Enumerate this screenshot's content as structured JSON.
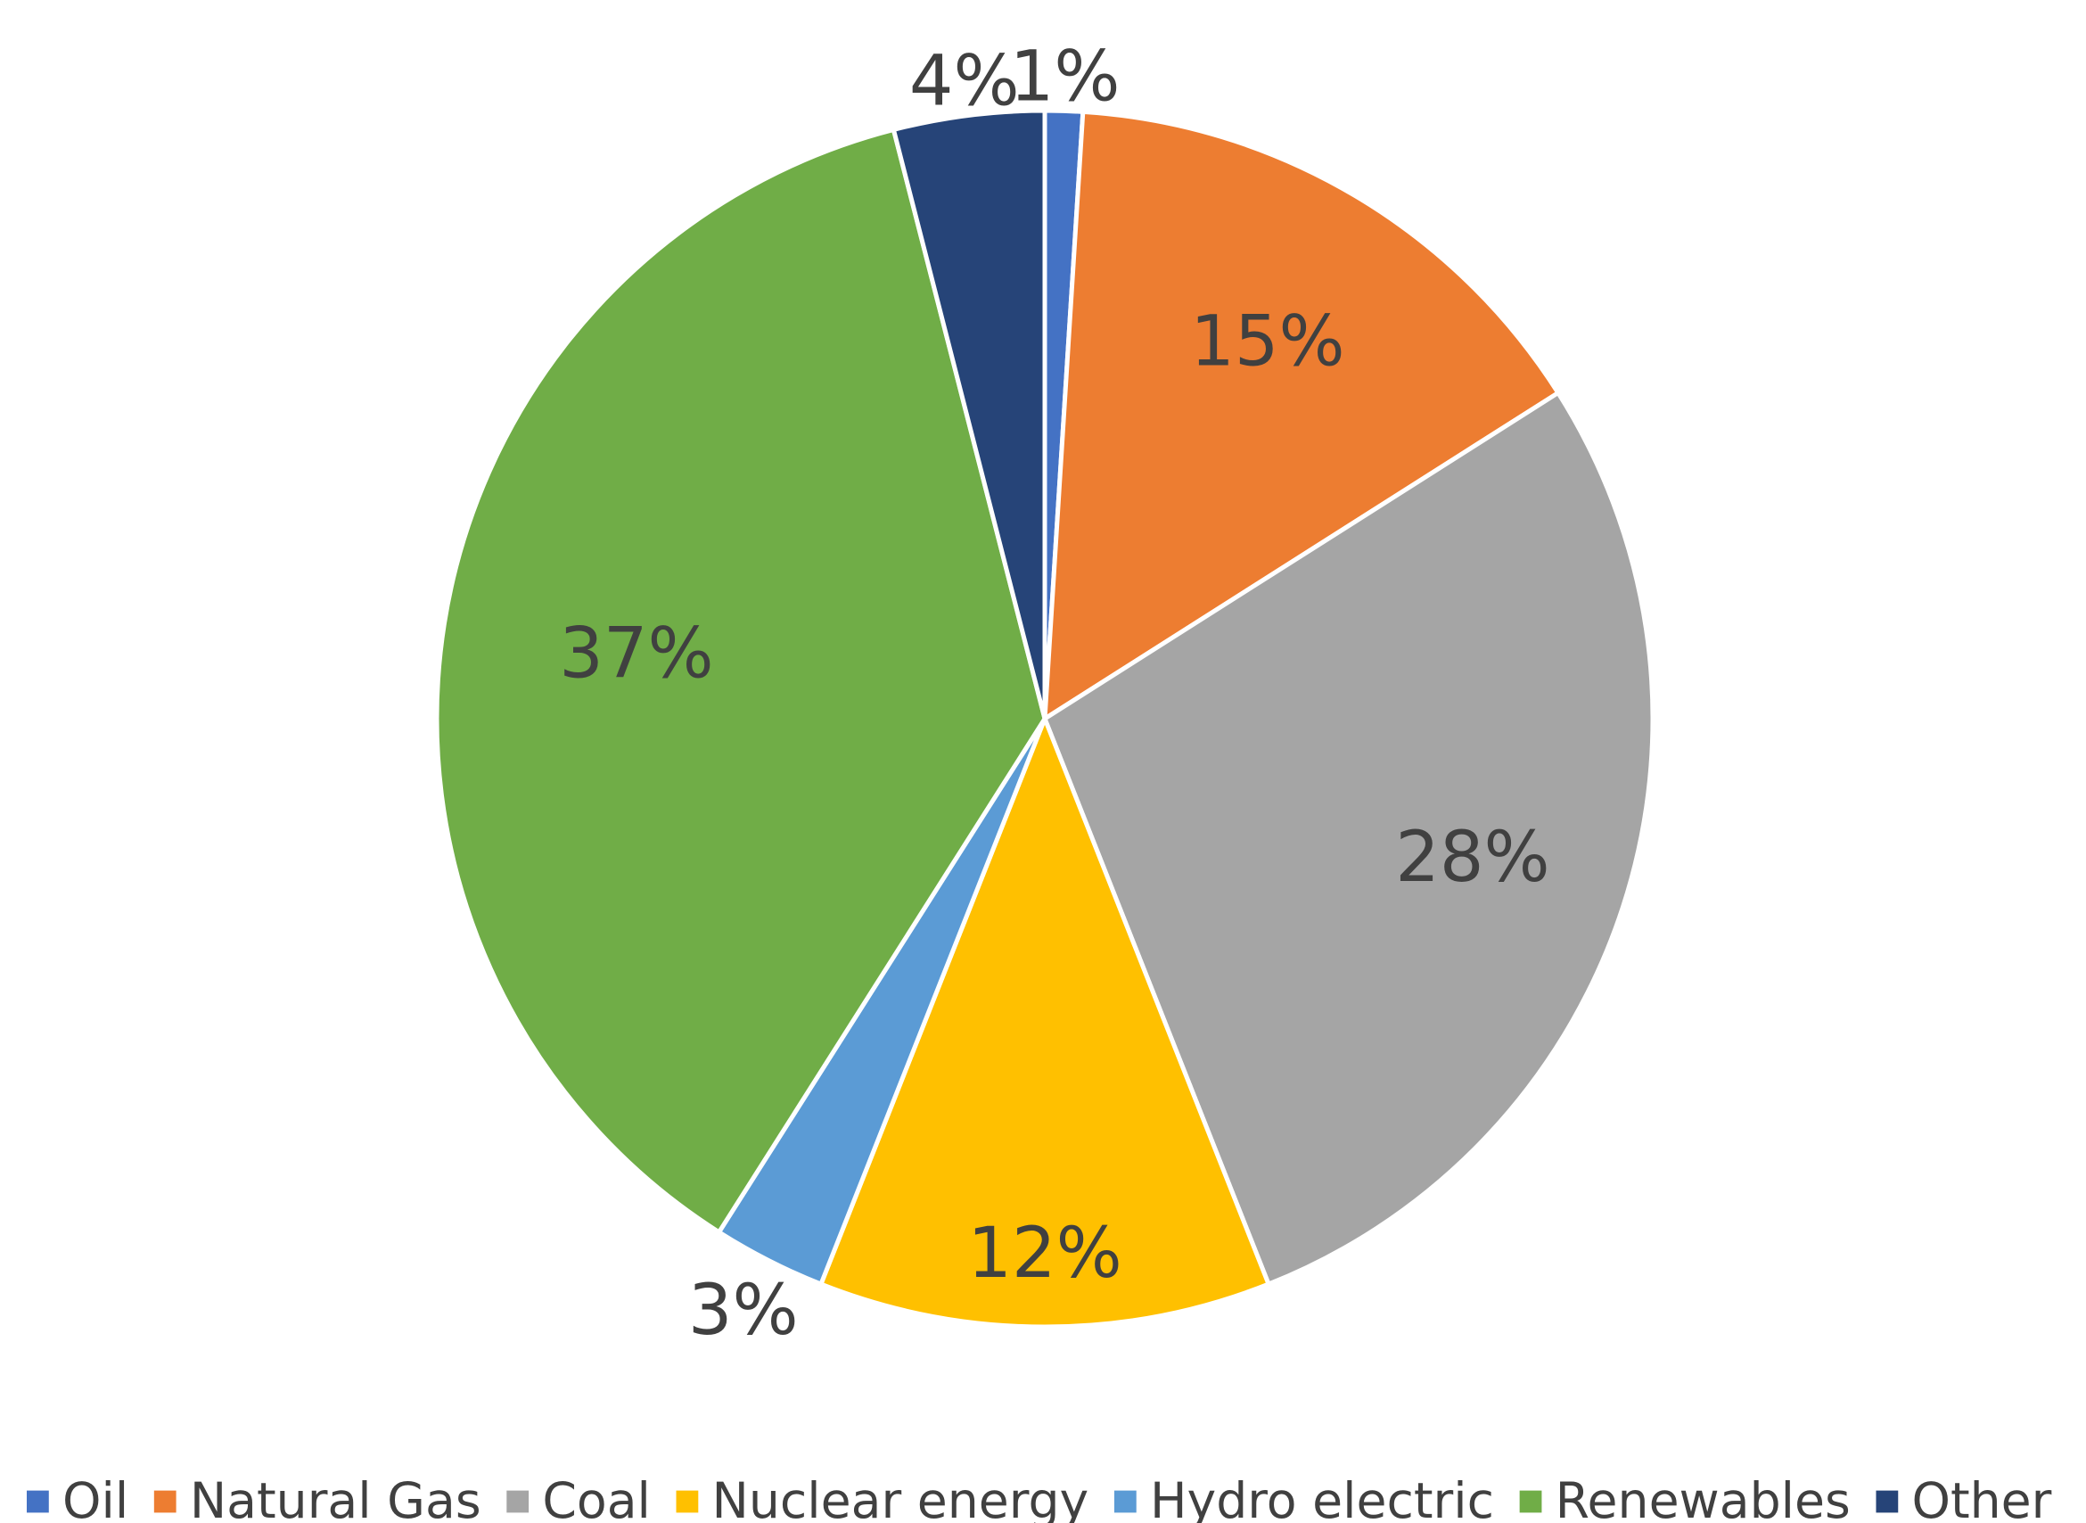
{
  "chart_data": {
    "type": "pie",
    "title": "",
    "legend_position": "bottom",
    "slices": [
      {
        "label": "Oil",
        "value": 1,
        "display": "1%",
        "color": "#4472C4"
      },
      {
        "label": "Natural Gas",
        "value": 15,
        "display": "15%",
        "color": "#ED7D31"
      },
      {
        "label": "Coal",
        "value": 28,
        "display": "28%",
        "color": "#A5A5A5"
      },
      {
        "label": "Nuclear energy",
        "value": 12,
        "display": "12%",
        "color": "#FFC000"
      },
      {
        "label": "Hydro electric",
        "value": 3,
        "display": "3%",
        "color": "#5B9BD5"
      },
      {
        "label": "Renewables",
        "value": 37,
        "display": "37%",
        "color": "#70AD47"
      },
      {
        "label": "Other",
        "value": 4,
        "display": "4%",
        "color": "#264478"
      }
    ]
  }
}
